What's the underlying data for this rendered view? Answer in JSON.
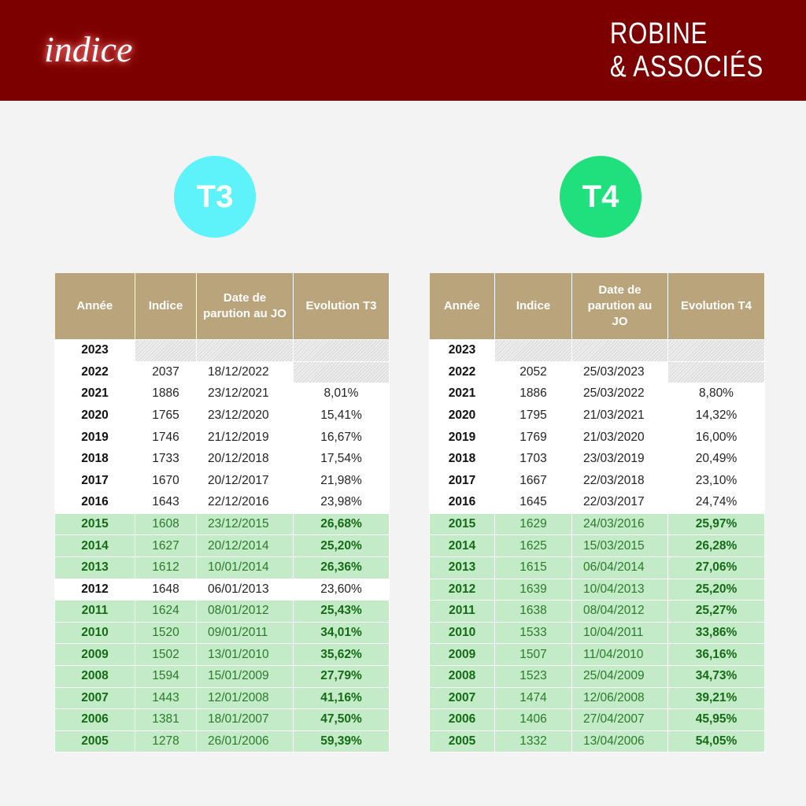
{
  "header": {
    "logo": "indice",
    "brand": [
      "ROBINE",
      "& ASSOCIÉS"
    ]
  },
  "tables": [
    {
      "badge": "T3",
      "badge_color": "#5ef2fa",
      "headers": [
        "Année",
        "Indice",
        "Date de parution au JO",
        "Evolution T3"
      ],
      "rows": [
        [
          "2023",
          null,
          null,
          null
        ],
        [
          "2022",
          "2037",
          "18/12/2022",
          null
        ],
        [
          "2021",
          "1886",
          "23/12/2021",
          "8,01%"
        ],
        [
          "2020",
          "1765",
          "23/12/2020",
          "15,41%"
        ],
        [
          "2019",
          "1746",
          "21/12/2019",
          "16,67%"
        ],
        [
          "2018",
          "1733",
          "20/12/2018",
          "17,54%"
        ],
        [
          "2017",
          "1670",
          "20/12/2017",
          "21,98%"
        ],
        [
          "2016",
          "1643",
          "22/12/2016",
          "23,98%"
        ],
        [
          "2015",
          "1608",
          "23/12/2015",
          "26,68%"
        ],
        [
          "2014",
          "1627",
          "20/12/2014",
          "25,20%"
        ],
        [
          "2013",
          "1612",
          "10/01/2014",
          "26,36%"
        ],
        [
          "2012",
          "1648",
          "06/01/2013",
          "23,60%"
        ],
        [
          "2011",
          "1624",
          "08/01/2012",
          "25,43%"
        ],
        [
          "2010",
          "1520",
          "09/01/2011",
          "34,01%"
        ],
        [
          "2009",
          "1502",
          "13/01/2010",
          "35,62%"
        ],
        [
          "2008",
          "1594",
          "15/01/2009",
          "27,79%"
        ],
        [
          "2007",
          "1443",
          "12/01/2008",
          "41,16%"
        ],
        [
          "2006",
          "1381",
          "18/01/2007",
          "47,50%"
        ],
        [
          "2005",
          "1278",
          "26/01/2006",
          "59,39%"
        ]
      ],
      "highlighted": [
        false,
        false,
        false,
        false,
        false,
        false,
        false,
        false,
        true,
        true,
        true,
        false,
        true,
        true,
        true,
        true,
        true,
        true,
        true
      ]
    },
    {
      "badge": "T4",
      "badge_color": "#1fe07c",
      "headers": [
        "Année",
        "Indice",
        "Date de parution au JO",
        "Evolution T4"
      ],
      "rows": [
        [
          "2023",
          null,
          null,
          null
        ],
        [
          "2022",
          "2052",
          "25/03/2023",
          null
        ],
        [
          "2021",
          "1886",
          "25/03/2022",
          "8,80%"
        ],
        [
          "2020",
          "1795",
          "21/03/2021",
          "14,32%"
        ],
        [
          "2019",
          "1769",
          "21/03/2020",
          "16,00%"
        ],
        [
          "2018",
          "1703",
          "23/03/2019",
          "20,49%"
        ],
        [
          "2017",
          "1667",
          "22/03/2018",
          "23,10%"
        ],
        [
          "2016",
          "1645",
          "22/03/2017",
          "24,74%"
        ],
        [
          "2015",
          "1629",
          "24/03/2016",
          "25,97%"
        ],
        [
          "2014",
          "1625",
          "15/03/2015",
          "26,28%"
        ],
        [
          "2013",
          "1615",
          "06/04/2014",
          "27,06%"
        ],
        [
          "2012",
          "1639",
          "10/04/2013",
          "25,20%"
        ],
        [
          "2011",
          "1638",
          "08/04/2012",
          "25,27%"
        ],
        [
          "2010",
          "1533",
          "10/04/2011",
          "33,86%"
        ],
        [
          "2009",
          "1507",
          "11/04/2010",
          "36,16%"
        ],
        [
          "2008",
          "1523",
          "25/04/2009",
          "34,73%"
        ],
        [
          "2007",
          "1474",
          "12/06/2008",
          "39,21%"
        ],
        [
          "2006",
          "1406",
          "27/04/2007",
          "45,95%"
        ],
        [
          "2005",
          "1332",
          "13/04/2006",
          "54,05%"
        ]
      ],
      "highlighted": [
        false,
        false,
        false,
        false,
        false,
        false,
        false,
        false,
        true,
        true,
        true,
        true,
        true,
        true,
        true,
        true,
        true,
        true,
        true
      ]
    }
  ]
}
